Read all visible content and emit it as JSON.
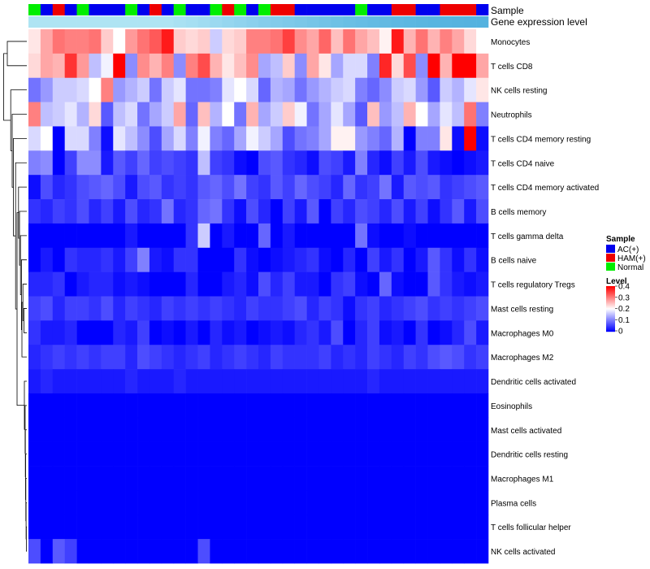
{
  "chart_data": {
    "type": "heatmap",
    "n_columns": 38,
    "annotation_labels": {
      "sample": "Sample",
      "gene": "Gene expression level"
    },
    "sample_groups": [
      "Normal",
      "AC(+)",
      "HAM(+)",
      "AC(+)",
      "Normal",
      "AC(+)",
      "AC(+)",
      "AC(+)",
      "Normal",
      "AC(+)",
      "HAM(+)",
      "AC(+)",
      "Normal",
      "AC(+)",
      "AC(+)",
      "Normal",
      "HAM(+)",
      "Normal",
      "AC(+)",
      "Normal",
      "HAM(+)",
      "HAM(+)",
      "AC(+)",
      "AC(+)",
      "AC(+)",
      "AC(+)",
      "AC(+)",
      "Normal",
      "AC(+)",
      "AC(+)",
      "HAM(+)",
      "HAM(+)",
      "AC(+)",
      "AC(+)",
      "HAM(+)",
      "HAM(+)",
      "HAM(+)",
      "AC(+)"
    ],
    "group_colors": {
      "AC(+)": "#0000ee",
      "HAM(+)": "#ee0000",
      "Normal": "#00ee00"
    },
    "gene_expression_colors": [
      "#aee4f3",
      "#aee4f3",
      "#aee4f3",
      "#aee4f3",
      "#aee4f3",
      "#aee4f3",
      "#aee4f3",
      "#aee4f3",
      "#aee4f3",
      "#aee4f3",
      "#aee4f3",
      "#aee4f3",
      "#a9e1f2",
      "#a5dff2",
      "#a0dcf1",
      "#9bd9f0",
      "#95d6ef",
      "#90d3ee",
      "#8bd0ed",
      "#86cdeb",
      "#82cbea",
      "#7ec9e9",
      "#7ac7e8",
      "#76c5e7",
      "#72c3e6",
      "#6ec1e5",
      "#6abfe4",
      "#67bde4",
      "#64bbe3",
      "#62bae2",
      "#5fb8e2",
      "#5cb7e1",
      "#5ab6e0",
      "#58b5e0",
      "#57b4e0",
      "#56b3df",
      "#55b2df",
      "#54b2df"
    ],
    "rows": [
      "Monocytes",
      "T cells CD8",
      "NK cells resting",
      "Neutrophils",
      "T cells CD4 memory resting",
      "T cells CD4 naive",
      "T cells CD4 memory activated",
      "B cells memory",
      "T cells gamma delta",
      "B cells naive",
      "T cells regulatory  Tregs",
      "Mast cells resting",
      "Macrophages M0",
      "Macrophages M2",
      "Dendritic cells activated",
      "Eosinophils",
      "Mast cells activated",
      "Dendritic cells resting",
      "Macrophages M1",
      "Plasma cells",
      "T cells follicular helper",
      "NK cells activated"
    ],
    "values": [
      [
        0.22,
        0.27,
        0.31,
        0.3,
        0.3,
        0.31,
        0.24,
        0.2,
        0.28,
        0.31,
        0.33,
        0.38,
        0.24,
        0.23,
        0.24,
        0.16,
        0.23,
        0.24,
        0.3,
        0.3,
        0.31,
        0.35,
        0.29,
        0.27,
        0.32,
        0.25,
        0.31,
        0.27,
        0.25,
        0.21,
        0.38,
        0.26,
        0.31,
        0.26,
        0.3,
        0.27,
        0.23,
        0.2
      ],
      [
        0.23,
        0.27,
        0.26,
        0.36,
        0.28,
        0.15,
        0.19,
        0.4,
        0.11,
        0.29,
        0.26,
        0.3,
        0.11,
        0.3,
        0.34,
        0.26,
        0.22,
        0.25,
        0.29,
        0.13,
        0.15,
        0.24,
        0.11,
        0.27,
        0.22,
        0.13,
        0.17,
        0.17,
        0.1,
        0.37,
        0.23,
        0.34,
        0.11,
        0.4,
        0.26,
        0.4,
        0.4,
        0.27
      ],
      [
        0.09,
        0.12,
        0.16,
        0.16,
        0.17,
        0.2,
        0.3,
        0.12,
        0.14,
        0.16,
        0.09,
        0.16,
        0.18,
        0.09,
        0.09,
        0.1,
        0.18,
        0.2,
        0.17,
        0.08,
        0.14,
        0.13,
        0.09,
        0.12,
        0.14,
        0.16,
        0.17,
        0.1,
        0.08,
        0.11,
        0.16,
        0.17,
        0.12,
        0.07,
        0.16,
        0.14,
        0.18,
        0.22
      ],
      [
        0.3,
        0.15,
        0.16,
        0.18,
        0.14,
        0.23,
        0.07,
        0.15,
        0.17,
        0.09,
        0.13,
        0.16,
        0.27,
        0.08,
        0.25,
        0.14,
        0.2,
        0.09,
        0.26,
        0.13,
        0.16,
        0.24,
        0.19,
        0.09,
        0.13,
        0.18,
        0.13,
        0.07,
        0.25,
        0.12,
        0.15,
        0.26,
        0.2,
        0.13,
        0.18,
        0.15,
        0.31,
        0.1
      ],
      [
        0.17,
        0.2,
        0.0,
        0.17,
        0.17,
        0.1,
        0.01,
        0.18,
        0.15,
        0.11,
        0.06,
        0.13,
        0.17,
        0.1,
        0.19,
        0.1,
        0.08,
        0.13,
        0.19,
        0.16,
        0.13,
        0.06,
        0.09,
        0.1,
        0.13,
        0.21,
        0.21,
        0.12,
        0.1,
        0.08,
        0.14,
        0.0,
        0.1,
        0.1,
        0.22,
        0.01,
        0.4,
        0.01
      ],
      [
        0.1,
        0.11,
        0.0,
        0.05,
        0.11,
        0.11,
        0.02,
        0.07,
        0.05,
        0.08,
        0.05,
        0.06,
        0.05,
        0.04,
        0.15,
        0.05,
        0.04,
        0.01,
        0.0,
        0.06,
        0.07,
        0.04,
        0.03,
        0.01,
        0.06,
        0.05,
        0.02,
        0.1,
        0.03,
        0.01,
        0.05,
        0.02,
        0.06,
        0.02,
        0.01,
        0.0,
        0.01,
        0.02
      ],
      [
        0.01,
        0.06,
        0.03,
        0.04,
        0.06,
        0.07,
        0.08,
        0.06,
        0.02,
        0.06,
        0.07,
        0.04,
        0.05,
        0.04,
        0.07,
        0.08,
        0.06,
        0.09,
        0.05,
        0.04,
        0.07,
        0.05,
        0.08,
        0.06,
        0.05,
        0.03,
        0.08,
        0.04,
        0.05,
        0.09,
        0.02,
        0.07,
        0.06,
        0.07,
        0.04,
        0.05,
        0.06,
        0.07
      ],
      [
        0.04,
        0.03,
        0.05,
        0.04,
        0.06,
        0.03,
        0.05,
        0.02,
        0.06,
        0.03,
        0.04,
        0.09,
        0.03,
        0.04,
        0.08,
        0.09,
        0.04,
        0.01,
        0.06,
        0.03,
        0.0,
        0.05,
        0.02,
        0.07,
        0.0,
        0.05,
        0.03,
        0.06,
        0.05,
        0.03,
        0.06,
        0.02,
        0.05,
        0.01,
        0.04,
        0.07,
        0.02,
        0.06
      ],
      [
        0.0,
        0.0,
        0.0,
        0.0,
        0.0,
        0.0,
        0.0,
        0.0,
        0.02,
        0.0,
        0.0,
        0.0,
        0.0,
        0.04,
        0.16,
        0.0,
        0.02,
        0.0,
        0.0,
        0.08,
        0.0,
        0.02,
        0.0,
        0.0,
        0.0,
        0.0,
        0.0,
        0.09,
        0.01,
        0.0,
        0.0,
        0.01,
        0.0,
        0.0,
        0.0,
        0.0,
        0.0,
        0.0
      ],
      [
        0.0,
        0.02,
        0.0,
        0.04,
        0.03,
        0.03,
        0.04,
        0.02,
        0.05,
        0.1,
        0.02,
        0.01,
        0.04,
        0.04,
        0.0,
        0.0,
        0.0,
        0.04,
        0.01,
        0.0,
        0.01,
        0.02,
        0.03,
        0.04,
        0.01,
        0.0,
        0.03,
        0.0,
        0.05,
        0.02,
        0.04,
        0.0,
        0.02,
        0.07,
        0.04,
        0.01,
        0.04,
        0.01
      ],
      [
        0.03,
        0.03,
        0.04,
        0.0,
        0.02,
        0.03,
        0.03,
        0.01,
        0.02,
        0.01,
        0.0,
        0.0,
        0.0,
        0.03,
        0.0,
        0.0,
        0.02,
        0.03,
        0.01,
        0.06,
        0.03,
        0.05,
        0.02,
        0.02,
        0.0,
        0.04,
        0.05,
        0.01,
        0.0,
        0.08,
        0.01,
        0.0,
        0.0,
        0.07,
        0.04,
        0.02,
        0.01,
        0.02
      ],
      [
        0.05,
        0.06,
        0.03,
        0.05,
        0.05,
        0.04,
        0.06,
        0.03,
        0.05,
        0.04,
        0.03,
        0.05,
        0.04,
        0.05,
        0.04,
        0.05,
        0.04,
        0.03,
        0.05,
        0.04,
        0.04,
        0.05,
        0.06,
        0.03,
        0.05,
        0.04,
        0.01,
        0.04,
        0.05,
        0.03,
        0.04,
        0.05,
        0.06,
        0.04,
        0.05,
        0.04,
        0.05,
        0.06
      ],
      [
        0.04,
        0.02,
        0.02,
        0.03,
        0.0,
        0.0,
        0.0,
        0.03,
        0.02,
        0.05,
        0.0,
        0.01,
        0.0,
        0.02,
        0.0,
        0.03,
        0.01,
        0.02,
        0.0,
        0.01,
        0.02,
        0.01,
        0.03,
        0.04,
        0.02,
        0.06,
        0.0,
        0.03,
        0.05,
        0.01,
        0.02,
        0.0,
        0.04,
        0.0,
        0.01,
        0.03,
        0.06,
        0.02
      ],
      [
        0.03,
        0.04,
        0.05,
        0.04,
        0.05,
        0.04,
        0.05,
        0.05,
        0.03,
        0.06,
        0.05,
        0.04,
        0.03,
        0.04,
        0.05,
        0.03,
        0.04,
        0.05,
        0.04,
        0.03,
        0.05,
        0.04,
        0.04,
        0.04,
        0.05,
        0.03,
        0.04,
        0.03,
        0.05,
        0.04,
        0.03,
        0.05,
        0.04,
        0.06,
        0.07,
        0.06,
        0.04,
        0.05
      ],
      [
        0.02,
        0.03,
        0.02,
        0.02,
        0.02,
        0.02,
        0.02,
        0.02,
        0.03,
        0.02,
        0.02,
        0.02,
        0.03,
        0.02,
        0.02,
        0.02,
        0.02,
        0.02,
        0.02,
        0.02,
        0.02,
        0.02,
        0.02,
        0.02,
        0.02,
        0.02,
        0.02,
        0.02,
        0.03,
        0.02,
        0.02,
        0.02,
        0.02,
        0.02,
        0.02,
        0.02,
        0.02,
        0.02
      ],
      [
        0,
        0,
        0,
        0,
        0,
        0,
        0,
        0,
        0,
        0,
        0,
        0,
        0,
        0,
        0,
        0,
        0,
        0,
        0,
        0,
        0,
        0,
        0,
        0,
        0,
        0,
        0,
        0,
        0,
        0,
        0,
        0,
        0,
        0,
        0,
        0,
        0,
        0
      ],
      [
        0,
        0,
        0,
        0,
        0,
        0,
        0,
        0,
        0,
        0,
        0,
        0,
        0,
        0,
        0,
        0,
        0,
        0,
        0,
        0,
        0,
        0,
        0,
        0,
        0,
        0,
        0,
        0,
        0,
        0,
        0,
        0,
        0,
        0,
        0,
        0,
        0,
        0
      ],
      [
        0,
        0,
        0,
        0,
        0,
        0,
        0,
        0,
        0,
        0,
        0,
        0,
        0,
        0,
        0,
        0,
        0,
        0,
        0,
        0,
        0,
        0,
        0,
        0,
        0,
        0,
        0,
        0,
        0,
        0,
        0,
        0,
        0,
        0,
        0,
        0,
        0,
        0
      ],
      [
        0,
        0,
        0,
        0,
        0,
        0,
        0,
        0,
        0,
        0,
        0,
        0,
        0,
        0,
        0,
        0,
        0,
        0,
        0,
        0,
        0,
        0,
        0,
        0,
        0,
        0,
        0,
        0,
        0,
        0,
        0,
        0,
        0,
        0,
        0,
        0,
        0,
        0
      ],
      [
        0,
        0,
        0,
        0,
        0,
        0,
        0,
        0,
        0,
        0,
        0,
        0,
        0,
        0,
        0,
        0,
        0,
        0,
        0,
        0,
        0,
        0,
        0,
        0,
        0,
        0,
        0,
        0,
        0,
        0,
        0,
        0,
        0,
        0,
        0,
        0,
        0,
        0
      ],
      [
        0,
        0,
        0,
        0,
        0,
        0,
        0,
        0,
        0,
        0,
        0,
        0,
        0,
        0,
        0,
        0,
        0,
        0,
        0,
        0,
        0,
        0,
        0,
        0,
        0,
        0,
        0,
        0,
        0,
        0,
        0,
        0,
        0,
        0,
        0,
        0,
        0,
        0
      ],
      [
        0.06,
        0.0,
        0.07,
        0.05,
        0.0,
        0.0,
        0.0,
        0.0,
        0.0,
        0.0,
        0.0,
        0.0,
        0.0,
        0.0,
        0.06,
        0.0,
        0.0,
        0.0,
        0.0,
        0.0,
        0.0,
        0.0,
        0.0,
        0.0,
        0.0,
        0.0,
        0.0,
        0.0,
        0.0,
        0.0,
        0.0,
        0.0,
        0.0,
        0.0,
        0.0,
        0.0,
        0.0,
        0.0
      ]
    ],
    "color_scale": {
      "domain": [
        0,
        0.4
      ],
      "low": "#0000ff",
      "mid": "#ffffff",
      "high": "#ff0000",
      "mid_value": 0.2
    },
    "legend": {
      "sample_title": "Sample",
      "groups": [
        "AC(+)",
        "HAM(+)",
        "Normal"
      ],
      "level_title": "Level",
      "level_ticks": [
        "0.4",
        "0.3",
        "0.2",
        "0.1",
        "0"
      ],
      "level_values": [
        0.4,
        0.3,
        0.2,
        0.1,
        0
      ],
      "placement": "right"
    }
  }
}
